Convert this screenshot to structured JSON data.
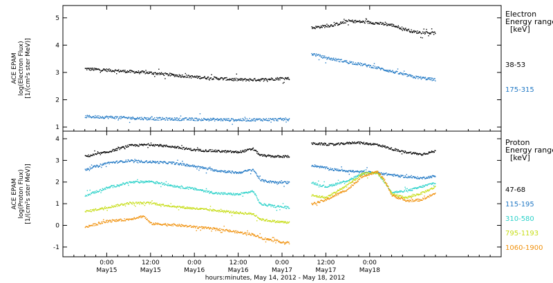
{
  "chart_data": [
    {
      "type": "scatter",
      "panel": "electron",
      "ylabel_lines": [
        "ACE EPAM",
        "log(Electron Flux)",
        "[1/(cm²s ster MeV)]"
      ],
      "ylim": [
        0.85,
        5.45
      ],
      "yticks": [
        "1",
        "2",
        "3",
        "4",
        "5"
      ],
      "legend": {
        "title_lines": [
          "Electron",
          "Energy ranges",
          "[keV]"
        ],
        "entries": [
          {
            "label": "38-53",
            "color": "#000000"
          },
          {
            "label": "175-315",
            "color": "#1f77c4"
          }
        ]
      },
      "series": [
        {
          "name": "38-53",
          "color": "#000000",
          "segments": [
            [
              [
                -6,
                3.15
              ],
              [
                0,
                3.1
              ],
              [
                6,
                3.05
              ],
              [
                12,
                3.0
              ],
              [
                18,
                2.92
              ],
              [
                24,
                2.85
              ],
              [
                30,
                2.8
              ],
              [
                36,
                2.75
              ],
              [
                42,
                2.75
              ],
              [
                48,
                2.8
              ],
              [
                50,
                2.8
              ]
            ],
            [
              [
                56,
                4.65
              ],
              [
                62,
                4.75
              ],
              [
                66,
                4.9
              ],
              [
                72,
                4.85
              ],
              [
                78,
                4.75
              ],
              [
                84,
                4.5
              ],
              [
                90,
                4.45
              ]
            ]
          ]
        },
        {
          "name": "175-315",
          "color": "#1f77c4",
          "segments": [
            [
              [
                -6,
                1.4
              ],
              [
                0,
                1.38
              ],
              [
                12,
                1.32
              ],
              [
                24,
                1.3
              ],
              [
                36,
                1.28
              ],
              [
                50,
                1.3
              ]
            ],
            [
              [
                56,
                3.7
              ],
              [
                60,
                3.55
              ],
              [
                66,
                3.4
              ],
              [
                72,
                3.25
              ],
              [
                78,
                3.05
              ],
              [
                84,
                2.85
              ],
              [
                90,
                2.75
              ]
            ]
          ]
        }
      ]
    },
    {
      "type": "scatter",
      "panel": "proton",
      "ylabel_lines": [
        "ACE EPAM",
        "log(Proton Flux)",
        "[1/(cm²s ster MeV)]"
      ],
      "ylim": [
        -1.45,
        4.35
      ],
      "yticks": [
        "-1",
        "0",
        "1",
        "2",
        "3",
        "4"
      ],
      "legend": {
        "title_lines": [
          "Proton",
          "Energy ranges",
          "[keV]"
        ],
        "entries": [
          {
            "label": "47-68",
            "color": "#000000"
          },
          {
            "label": "115-195",
            "color": "#1f77c4"
          },
          {
            "label": "310-580",
            "color": "#2ad1c9"
          },
          {
            "label": "795-1193",
            "color": "#c6dd14"
          },
          {
            "label": "1060-1900",
            "color": "#f0910c"
          }
        ]
      },
      "series": [
        {
          "name": "47-68",
          "color": "#000000",
          "segments": [
            [
              [
                -6,
                3.2
              ],
              [
                0,
                3.4
              ],
              [
                6,
                3.7
              ],
              [
                12,
                3.75
              ],
              [
                18,
                3.65
              ],
              [
                24,
                3.5
              ],
              [
                30,
                3.45
              ],
              [
                36,
                3.4
              ],
              [
                40,
                3.55
              ],
              [
                42,
                3.25
              ],
              [
                46,
                3.2
              ],
              [
                50,
                3.2
              ]
            ],
            [
              [
                56,
                3.8
              ],
              [
                62,
                3.75
              ],
              [
                68,
                3.85
              ],
              [
                74,
                3.75
              ],
              [
                80,
                3.45
              ],
              [
                86,
                3.3
              ],
              [
                90,
                3.45
              ]
            ]
          ]
        },
        {
          "name": "115-195",
          "color": "#1f77c4",
          "segments": [
            [
              [
                -6,
                2.6
              ],
              [
                0,
                2.9
              ],
              [
                6,
                3.0
              ],
              [
                12,
                2.95
              ],
              [
                18,
                2.9
              ],
              [
                24,
                2.75
              ],
              [
                30,
                2.55
              ],
              [
                36,
                2.45
              ],
              [
                40,
                2.6
              ],
              [
                42,
                2.1
              ],
              [
                46,
                2.0
              ],
              [
                50,
                2.0
              ]
            ],
            [
              [
                56,
                2.8
              ],
              [
                62,
                2.6
              ],
              [
                68,
                2.5
              ],
              [
                74,
                2.45
              ],
              [
                80,
                2.3
              ],
              [
                86,
                2.2
              ],
              [
                90,
                2.3
              ]
            ]
          ]
        },
        {
          "name": "310-580",
          "color": "#2ad1c9",
          "segments": [
            [
              [
                -6,
                1.4
              ],
              [
                0,
                1.75
              ],
              [
                6,
                2.0
              ],
              [
                12,
                2.05
              ],
              [
                18,
                1.85
              ],
              [
                24,
                1.7
              ],
              [
                30,
                1.5
              ],
              [
                36,
                1.45
              ],
              [
                40,
                1.6
              ],
              [
                42,
                1.0
              ],
              [
                46,
                0.9
              ],
              [
                50,
                0.85
              ]
            ],
            [
              [
                56,
                2.0
              ],
              [
                60,
                1.8
              ],
              [
                66,
                2.1
              ],
              [
                70,
                2.4
              ],
              [
                74,
                2.45
              ],
              [
                76,
                2.0
              ],
              [
                78,
                1.55
              ],
              [
                82,
                1.6
              ],
              [
                86,
                1.8
              ],
              [
                90,
                2.0
              ]
            ]
          ]
        },
        {
          "name": "795-1193",
          "color": "#c6dd14",
          "segments": [
            [
              [
                -6,
                0.65
              ],
              [
                0,
                0.85
              ],
              [
                6,
                1.05
              ],
              [
                12,
                1.05
              ],
              [
                18,
                0.9
              ],
              [
                24,
                0.8
              ],
              [
                30,
                0.7
              ],
              [
                36,
                0.6
              ],
              [
                40,
                0.55
              ],
              [
                42,
                0.3
              ],
              [
                46,
                0.2
              ],
              [
                50,
                0.15
              ]
            ],
            [
              [
                56,
                1.4
              ],
              [
                60,
                1.3
              ],
              [
                66,
                1.9
              ],
              [
                70,
                2.4
              ],
              [
                74,
                2.45
              ],
              [
                76,
                2.05
              ],
              [
                78,
                1.45
              ],
              [
                82,
                1.3
              ],
              [
                86,
                1.5
              ],
              [
                90,
                1.8
              ]
            ]
          ]
        },
        {
          "name": "1060-1900",
          "color": "#f0910c",
          "segments": [
            [
              [
                -6,
                -0.05
              ],
              [
                0,
                0.2
              ],
              [
                6,
                0.3
              ],
              [
                10,
                0.45
              ],
              [
                12,
                0.1
              ],
              [
                18,
                0.05
              ],
              [
                24,
                -0.05
              ],
              [
                30,
                -0.15
              ],
              [
                36,
                -0.3
              ],
              [
                40,
                -0.4
              ],
              [
                42,
                -0.55
              ],
              [
                46,
                -0.7
              ],
              [
                50,
                -0.8
              ]
            ],
            [
              [
                56,
                1.0
              ],
              [
                60,
                1.2
              ],
              [
                66,
                1.7
              ],
              [
                70,
                2.3
              ],
              [
                74,
                2.5
              ],
              [
                76,
                2.1
              ],
              [
                78,
                1.4
              ],
              [
                82,
                1.15
              ],
              [
                86,
                1.2
              ],
              [
                90,
                1.5
              ]
            ]
          ]
        }
      ]
    }
  ],
  "x_axis": {
    "range_hours": [
      -12,
      108
    ],
    "ticks": [
      {
        "hour": 0,
        "time": "0:00",
        "date": "May15"
      },
      {
        "hour": 12,
        "time": "12:00",
        "date": "May15"
      },
      {
        "hour": 24,
        "time": "0:00",
        "date": "May16"
      },
      {
        "hour": 36,
        "time": "12:00",
        "date": "May16"
      },
      {
        "hour": 48,
        "time": "0:00",
        "date": "May17"
      },
      {
        "hour": 60,
        "time": "12:00",
        "date": "May17"
      },
      {
        "hour": 72,
        "time": "0:00",
        "date": "May18"
      }
    ],
    "xlabel": "hours:minutes, May 14, 2012 - May 18, 2012"
  }
}
